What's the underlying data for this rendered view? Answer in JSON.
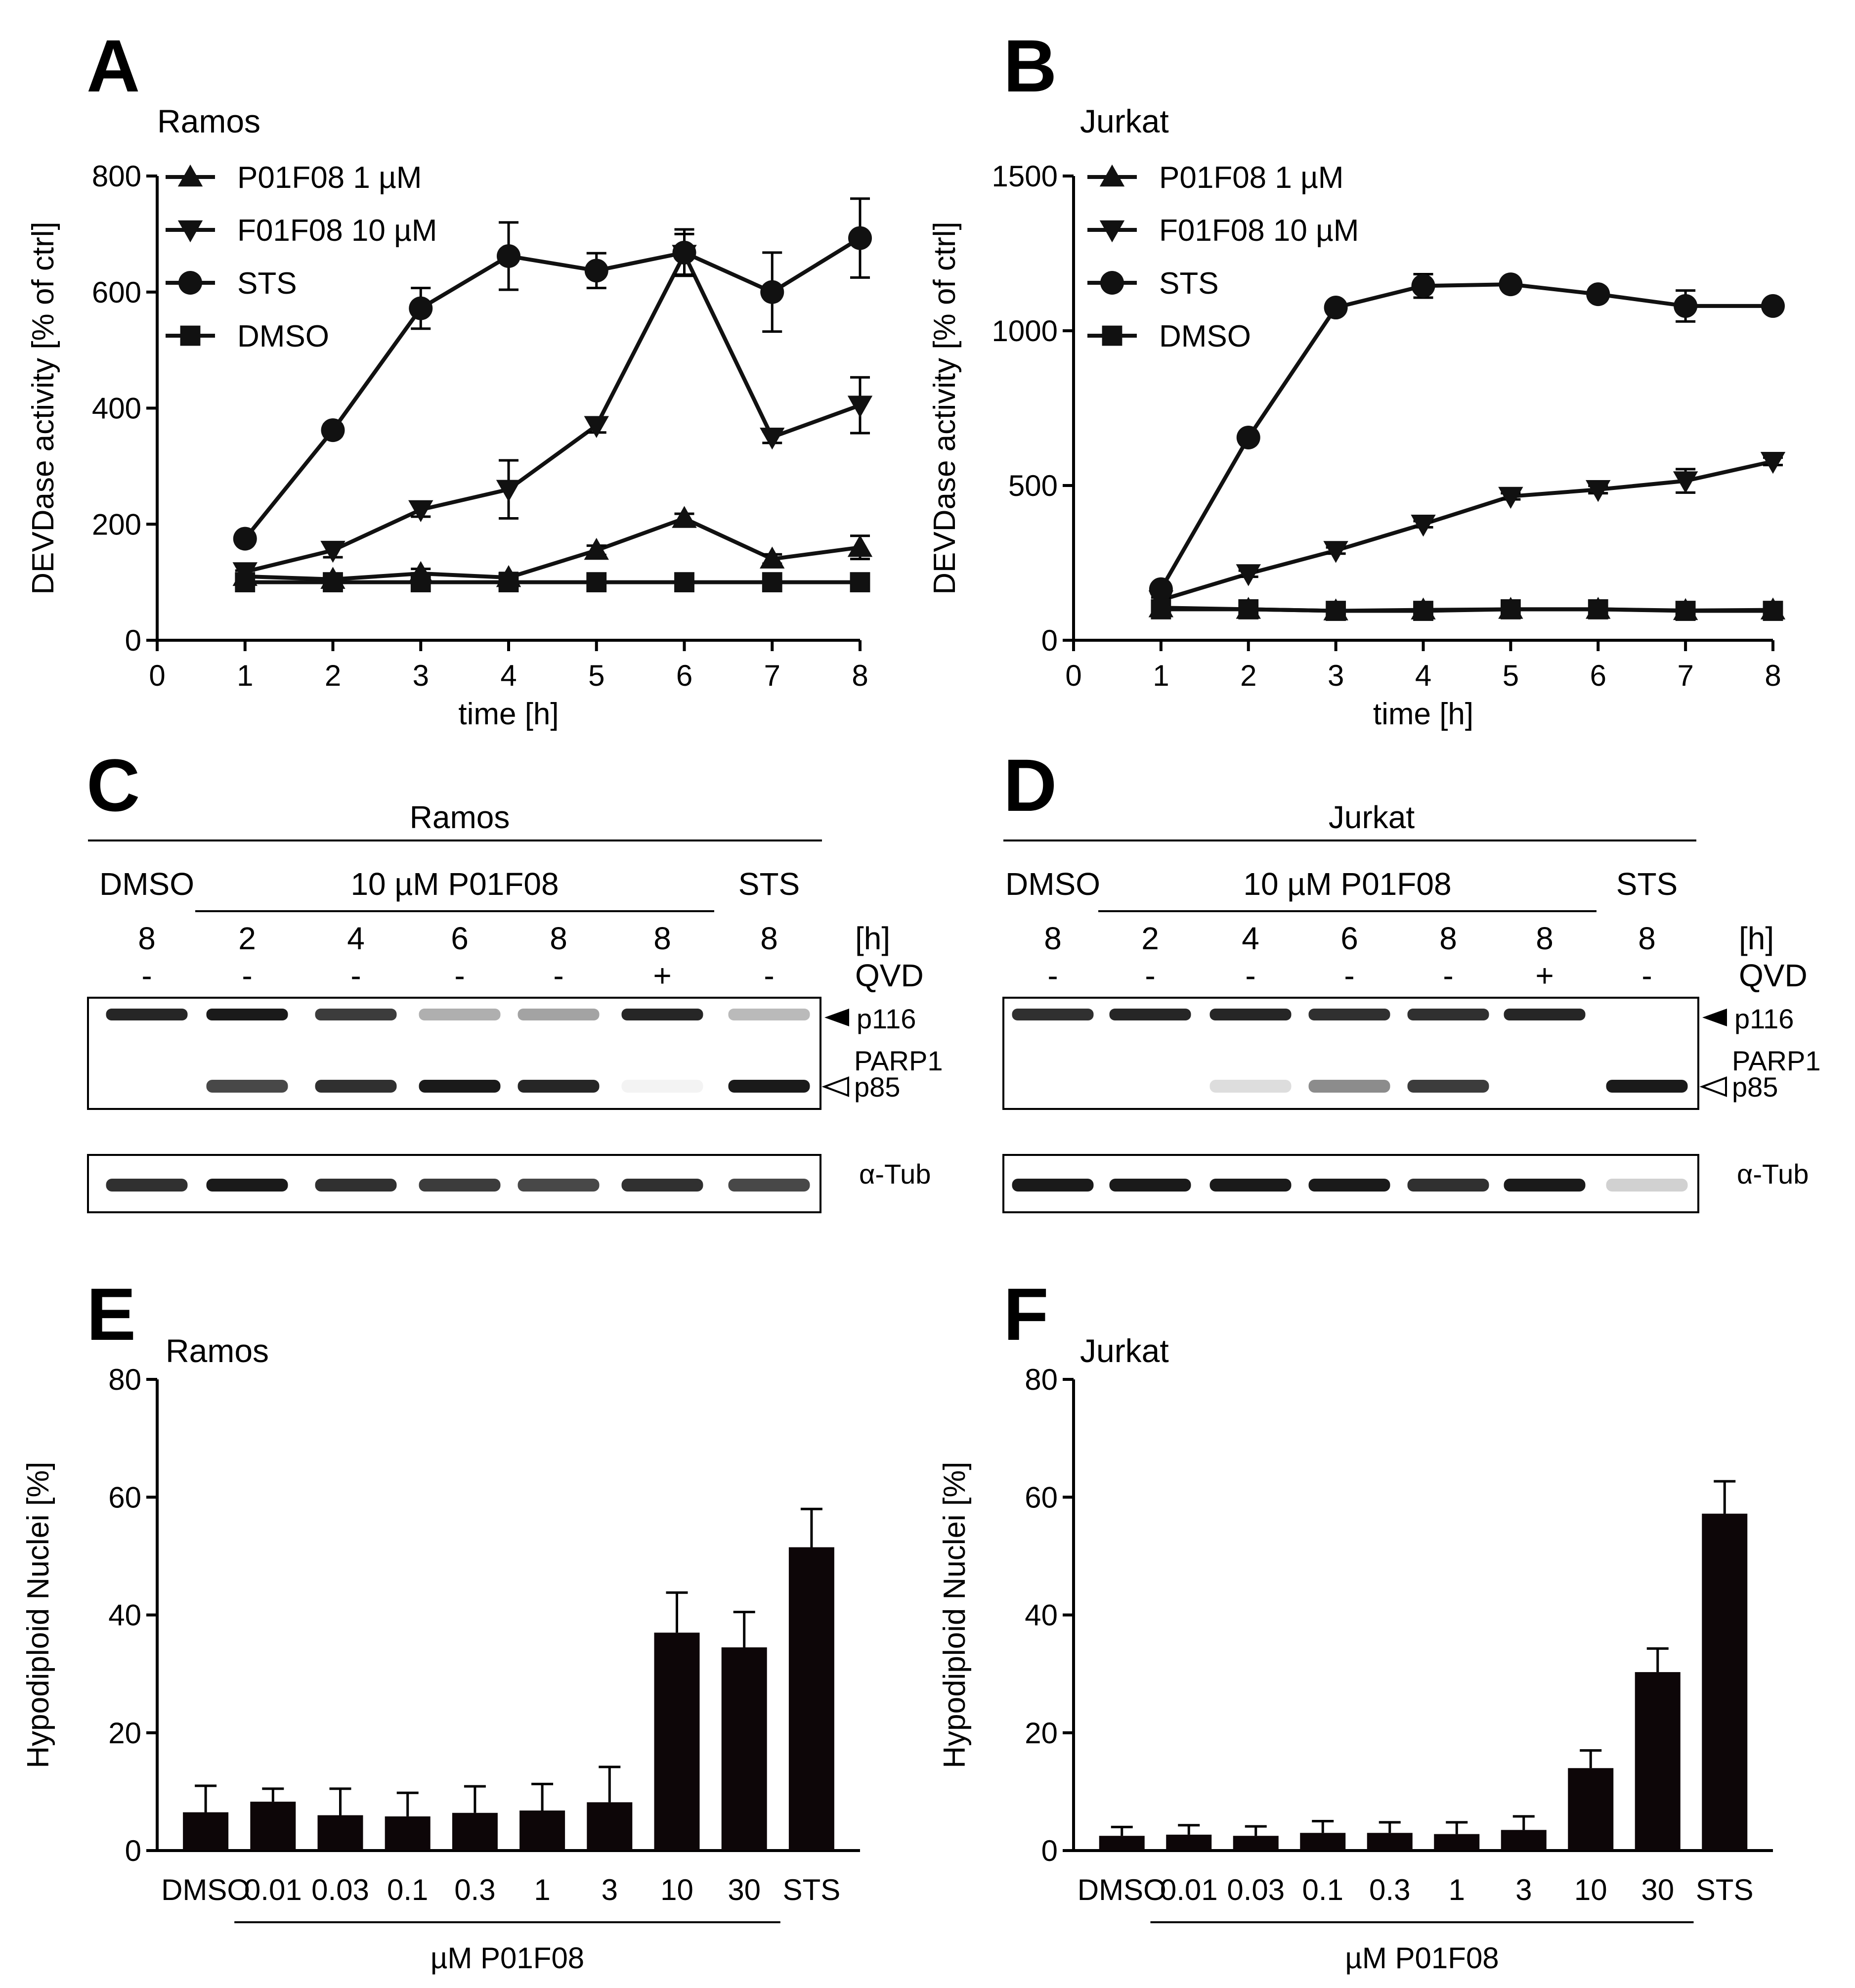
{
  "panels": {
    "A": {
      "letter": "A",
      "title": "Ramos"
    },
    "B": {
      "letter": "B",
      "title": "Jurkat"
    },
    "C": {
      "letter": "C",
      "title": "Ramos"
    },
    "D": {
      "letter": "D",
      "title": "Jurkat"
    },
    "E": {
      "letter": "E",
      "title": "Ramos"
    },
    "F": {
      "letter": "F",
      "title": "Jurkat"
    }
  },
  "colors": {
    "series": "#111111",
    "bar": "#0d0608",
    "band": "#1a1a1a"
  },
  "chart_data": [
    {
      "id": "A",
      "type": "line",
      "title": "Ramos",
      "xlabel": "time [h]",
      "ylabel": "DEVDase activity [% of ctrl]",
      "xlim": [
        0,
        8
      ],
      "ylim": [
        0,
        800
      ],
      "xticks": [
        0,
        1,
        2,
        3,
        4,
        5,
        6,
        7,
        8
      ],
      "yticks": [
        0,
        200,
        400,
        600,
        800
      ],
      "x": [
        1,
        2,
        3,
        4,
        5,
        6,
        7,
        8
      ],
      "series": [
        {
          "name": "P01F08 1 µM",
          "marker": "triangle-up",
          "values": [
            110,
            105,
            115,
            108,
            155,
            210,
            140,
            160
          ],
          "errors": [
            10,
            8,
            8,
            8,
            8,
            8,
            8,
            20
          ]
        },
        {
          "name": "F01F08 10 µM",
          "marker": "triangle-down",
          "values": [
            118,
            155,
            225,
            260,
            370,
            665,
            350,
            405
          ],
          "errors": [
            10,
            12,
            12,
            50,
            12,
            35,
            10,
            48
          ]
        },
        {
          "name": "STS",
          "marker": "circle",
          "values": [
            175,
            362,
            572,
            662,
            637,
            668,
            600,
            693
          ],
          "errors": [
            8,
            10,
            35,
            58,
            30,
            40,
            68,
            68
          ]
        },
        {
          "name": "DMSO",
          "marker": "square",
          "values": [
            100,
            100,
            100,
            100,
            100,
            100,
            100,
            100
          ],
          "errors": [
            0,
            0,
            0,
            0,
            0,
            0,
            0,
            0
          ]
        }
      ]
    },
    {
      "id": "B",
      "type": "line",
      "title": "Jurkat",
      "xlabel": "time [h]",
      "ylabel": "DEVDase activity [% of ctrl]",
      "xlim": [
        0,
        8
      ],
      "ylim": [
        0,
        1500
      ],
      "xticks": [
        0,
        1,
        2,
        3,
        4,
        5,
        6,
        7,
        8
      ],
      "yticks": [
        0,
        500,
        1000,
        1500
      ],
      "x": [
        1,
        2,
        3,
        4,
        5,
        6,
        7,
        8
      ],
      "series": [
        {
          "name": "P01F08 1 µM",
          "marker": "triangle-up",
          "values": [
            105,
            100,
            95,
            98,
            100,
            100,
            96,
            98
          ],
          "errors": [
            5,
            5,
            5,
            5,
            5,
            5,
            5,
            5
          ]
        },
        {
          "name": "F01F08 10 µM",
          "marker": "triangle-down",
          "values": [
            130,
            215,
            290,
            375,
            465,
            487,
            515,
            578
          ],
          "errors": [
            8,
            10,
            10,
            10,
            10,
            12,
            38,
            12
          ]
        },
        {
          "name": "STS",
          "marker": "circle",
          "values": [
            165,
            655,
            1075,
            1145,
            1150,
            1118,
            1080,
            1080
          ],
          "errors": [
            8,
            10,
            10,
            38,
            10,
            10,
            50,
            10
          ]
        },
        {
          "name": "DMSO",
          "marker": "square",
          "values": [
            100,
            100,
            95,
            95,
            100,
            100,
            95,
            95
          ],
          "errors": [
            0,
            0,
            0,
            0,
            0,
            0,
            0,
            0
          ]
        }
      ]
    },
    {
      "id": "E",
      "type": "bar",
      "title": "Ramos",
      "ylabel": "Hypodiploid Nuclei [%]",
      "xgroup_label": "µM P01F08",
      "ylim": [
        0,
        80
      ],
      "yticks": [
        0,
        20,
        40,
        60,
        80
      ],
      "categories": [
        "DMSO",
        "0.01",
        "0.03",
        "0.1",
        "0.3",
        "1",
        "3",
        "10",
        "30",
        "STS"
      ],
      "values": [
        6.5,
        8.3,
        6,
        5.8,
        6.4,
        6.8,
        8.2,
        37,
        34.5,
        51.5
      ],
      "errors": [
        4.5,
        2.2,
        4.5,
        4,
        4.5,
        4.5,
        6,
        6.8,
        6,
        6.5
      ]
    },
    {
      "id": "F",
      "type": "bar",
      "title": "Jurkat",
      "ylabel": "Hypodiploid Nuclei [%]",
      "xgroup_label": "µM P01F08",
      "ylim": [
        0,
        80
      ],
      "yticks": [
        0,
        20,
        40,
        60,
        80
      ],
      "categories": [
        "DMSO",
        "0.01",
        "0.03",
        "0.1",
        "0.3",
        "1",
        "3",
        "10",
        "30",
        "STS"
      ],
      "values": [
        2.5,
        2.7,
        2.5,
        3,
        3,
        2.8,
        3.5,
        14,
        30.3,
        57.2
      ],
      "errors": [
        1.5,
        1.6,
        1.6,
        2,
        1.8,
        2,
        2.3,
        3,
        4,
        5.5
      ]
    }
  ],
  "blots": {
    "C": {
      "title": "Ramos",
      "dmso_label": "DMSO",
      "treat_label": "10 µM P01F08",
      "sts_label": "STS",
      "time_unit": "[h]",
      "qvd_label": "QVD",
      "times": [
        "8",
        "2",
        "4",
        "6",
        "8",
        "8",
        "8"
      ],
      "qvd": [
        "-",
        "-",
        "-",
        "-",
        "-",
        "+",
        "-"
      ],
      "p116": [
        0.95,
        1.0,
        0.85,
        0.35,
        0.4,
        0.95,
        0.3
      ],
      "p85": [
        0.0,
        0.8,
        0.9,
        1.0,
        0.95,
        0.05,
        1.0
      ],
      "tub": [
        0.9,
        1.0,
        0.9,
        0.85,
        0.8,
        0.9,
        0.8
      ],
      "labels": {
        "p116": "p116",
        "parp": "PARP1",
        "p85": "p85",
        "tub": "α-Tub"
      }
    },
    "D": {
      "title": "Jurkat",
      "dmso_label": "DMSO",
      "treat_label": "10 µM P01F08",
      "sts_label": "STS",
      "time_unit": "[h]",
      "qvd_label": "QVD",
      "times": [
        "8",
        "2",
        "4",
        "6",
        "8",
        "8",
        "8"
      ],
      "qvd": [
        "-",
        "-",
        "-",
        "-",
        "-",
        "+",
        "-"
      ],
      "p116": [
        0.9,
        0.95,
        0.95,
        0.9,
        0.9,
        0.95,
        0.0
      ],
      "p85": [
        0.0,
        0.0,
        0.15,
        0.5,
        0.85,
        0.0,
        1.0
      ],
      "tub": [
        1.0,
        1.0,
        1.0,
        1.0,
        0.9,
        1.0,
        0.2
      ],
      "labels": {
        "p116": "p116",
        "parp": "PARP1",
        "p85": "p85",
        "tub": "α-Tub"
      }
    }
  }
}
